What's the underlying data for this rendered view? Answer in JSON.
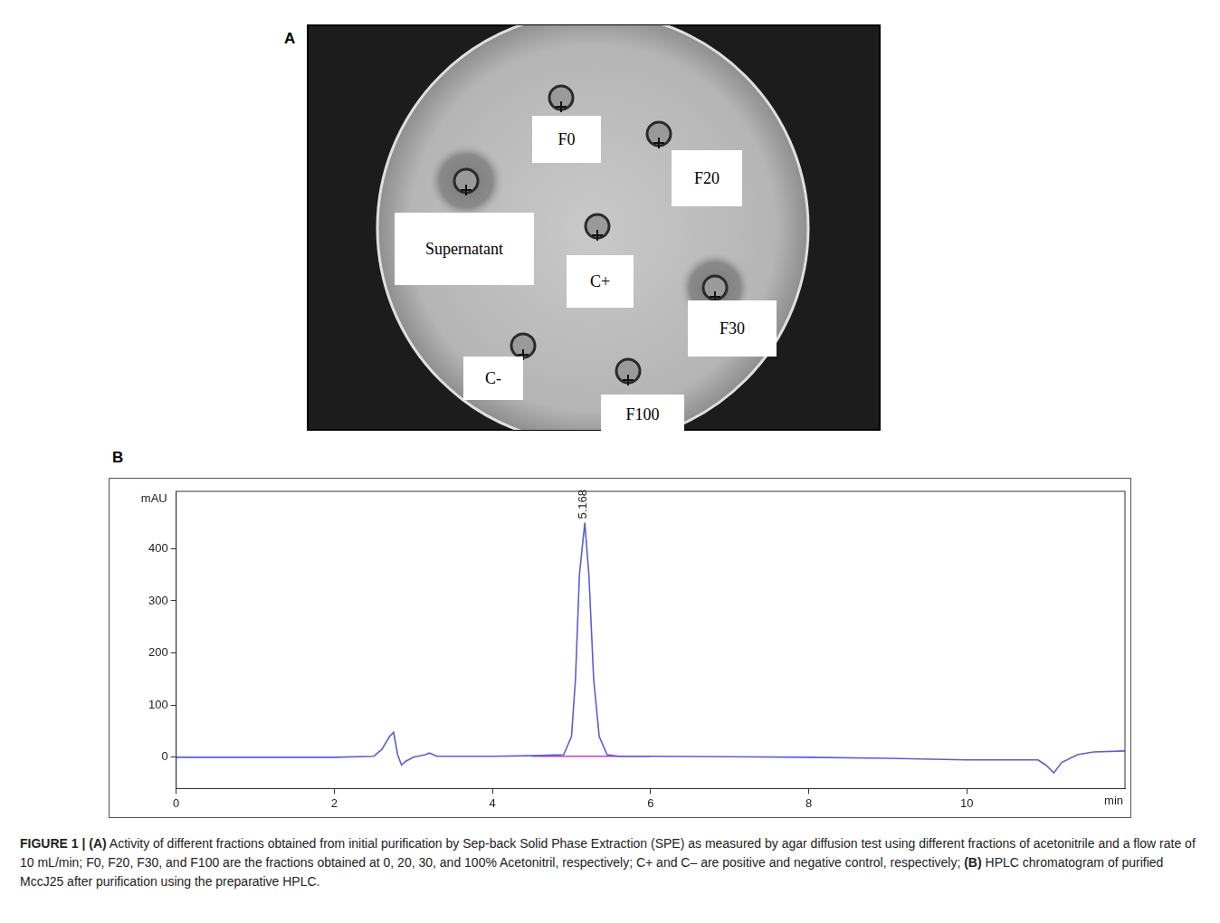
{
  "panel_a": {
    "letter": "A",
    "well_labels": [
      "F0",
      "F20",
      "Supernatant",
      "C+",
      "F30",
      "C-",
      "F100"
    ]
  },
  "panel_b": {
    "letter": "B"
  },
  "chart_data": {
    "type": "line",
    "x_label": "min",
    "y_label": "mAU",
    "xlim": [
      0,
      12
    ],
    "xticks": [
      0,
      2,
      4,
      6,
      8,
      10
    ],
    "ylim": [
      -60,
      510
    ],
    "yticks": [
      0,
      100,
      200,
      300,
      400
    ],
    "grid": false,
    "series": [
      {
        "color": "#5a5fd0",
        "x": [
          0,
          1,
          2,
          2.5,
          2.6,
          2.7,
          2.75,
          2.8,
          2.85,
          2.9,
          3.0,
          3.15,
          3.2,
          3.3,
          4,
          4.5,
          4.9,
          5.0,
          5.05,
          5.1,
          5.168,
          5.22,
          5.28,
          5.35,
          5.45,
          5.6,
          6,
          7,
          8,
          9,
          10,
          10.9,
          11.0,
          11.1,
          11.2,
          11.4,
          11.6,
          12
        ],
        "values": [
          0,
          0,
          0,
          2,
          15,
          40,
          48,
          5,
          -15,
          -8,
          0,
          5,
          8,
          2,
          2,
          3,
          5,
          40,
          150,
          350,
          450,
          350,
          150,
          40,
          5,
          2,
          2,
          1,
          0,
          -2,
          -5,
          -5,
          -15,
          -30,
          -10,
          5,
          10,
          12
        ]
      },
      {
        "color": "#c040c0",
        "x": [
          4.5,
          6
        ],
        "values": [
          2,
          2
        ]
      }
    ],
    "annotations": [
      {
        "x": 5.168,
        "y": 450,
        "text": "5.168"
      }
    ]
  },
  "caption": [
    {
      "text": "FIGURE 1 | ",
      "bold": true
    },
    {
      "text": "(A)",
      "bold": true
    },
    {
      "text": " Activity of different fractions obtained from initial purification by Sep-back Solid Phase Extraction (SPE) as measured by agar diffusion test using different fractions of acetonitrile and a flow rate of 10 mL/min; F0, F20, F30, and F100 are the fractions obtained at 0, 20, 30, and 100% Acetonitril, respectively; C+ and C– are positive and negative control, respectively; ",
      "bold": false
    },
    {
      "text": "(B)",
      "bold": true
    },
    {
      "text": " HPLC chromatogram of purified MccJ25 after purification using the preparative HPLC.",
      "bold": false
    }
  ]
}
